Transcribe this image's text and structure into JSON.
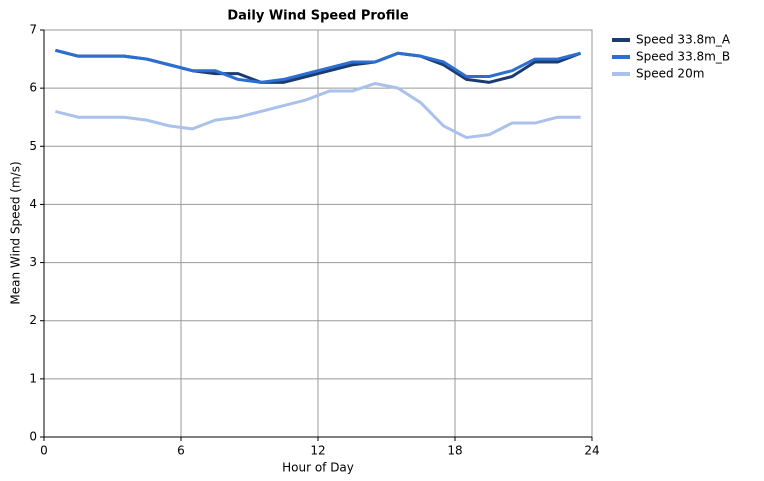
{
  "chart_data": {
    "type": "line",
    "title": "Daily Wind Speed Profile",
    "x_label": "Hour of Day",
    "y_label": "Mean Wind Speed (m/s)",
    "x": [
      0.5,
      1.5,
      2.5,
      3.5,
      4.5,
      5.5,
      6.5,
      7.5,
      8.5,
      9.5,
      10.5,
      11.5,
      12.5,
      13.5,
      14.5,
      15.5,
      16.5,
      17.5,
      18.5,
      19.5,
      20.5,
      21.5,
      22.5,
      23.5
    ],
    "series": [
      {
        "name": "Speed 33.8m_A",
        "color": "#1b3c6e",
        "values": [
          6.65,
          6.55,
          6.55,
          6.55,
          6.5,
          6.4,
          6.3,
          6.25,
          6.25,
          6.1,
          6.1,
          6.2,
          6.3,
          6.4,
          6.45,
          6.6,
          6.55,
          6.4,
          6.15,
          6.1,
          6.2,
          6.45,
          6.45,
          6.6
        ]
      },
      {
        "name": "Speed 33.8m_B",
        "color": "#2b6fd1",
        "values": [
          6.65,
          6.55,
          6.55,
          6.55,
          6.5,
          6.4,
          6.3,
          6.3,
          6.15,
          6.1,
          6.15,
          6.25,
          6.35,
          6.45,
          6.45,
          6.6,
          6.55,
          6.45,
          6.2,
          6.2,
          6.3,
          6.5,
          6.5,
          6.6
        ]
      },
      {
        "name": "Speed 20m",
        "color": "#a9c1ec",
        "values": [
          5.6,
          5.5,
          5.5,
          5.5,
          5.45,
          5.35,
          5.3,
          5.45,
          5.5,
          5.6,
          5.7,
          5.8,
          5.95,
          5.95,
          6.08,
          6.0,
          5.75,
          5.35,
          5.15,
          5.2,
          5.4,
          5.4,
          5.5,
          5.5
        ]
      }
    ],
    "xlim": [
      0,
      24
    ],
    "xticks": [
      0,
      6,
      12,
      18,
      24
    ],
    "ylim": [
      0,
      7
    ],
    "yticks": [
      0,
      1,
      2,
      3,
      4,
      5,
      6,
      7
    ],
    "grid": true,
    "legend": "right"
  }
}
